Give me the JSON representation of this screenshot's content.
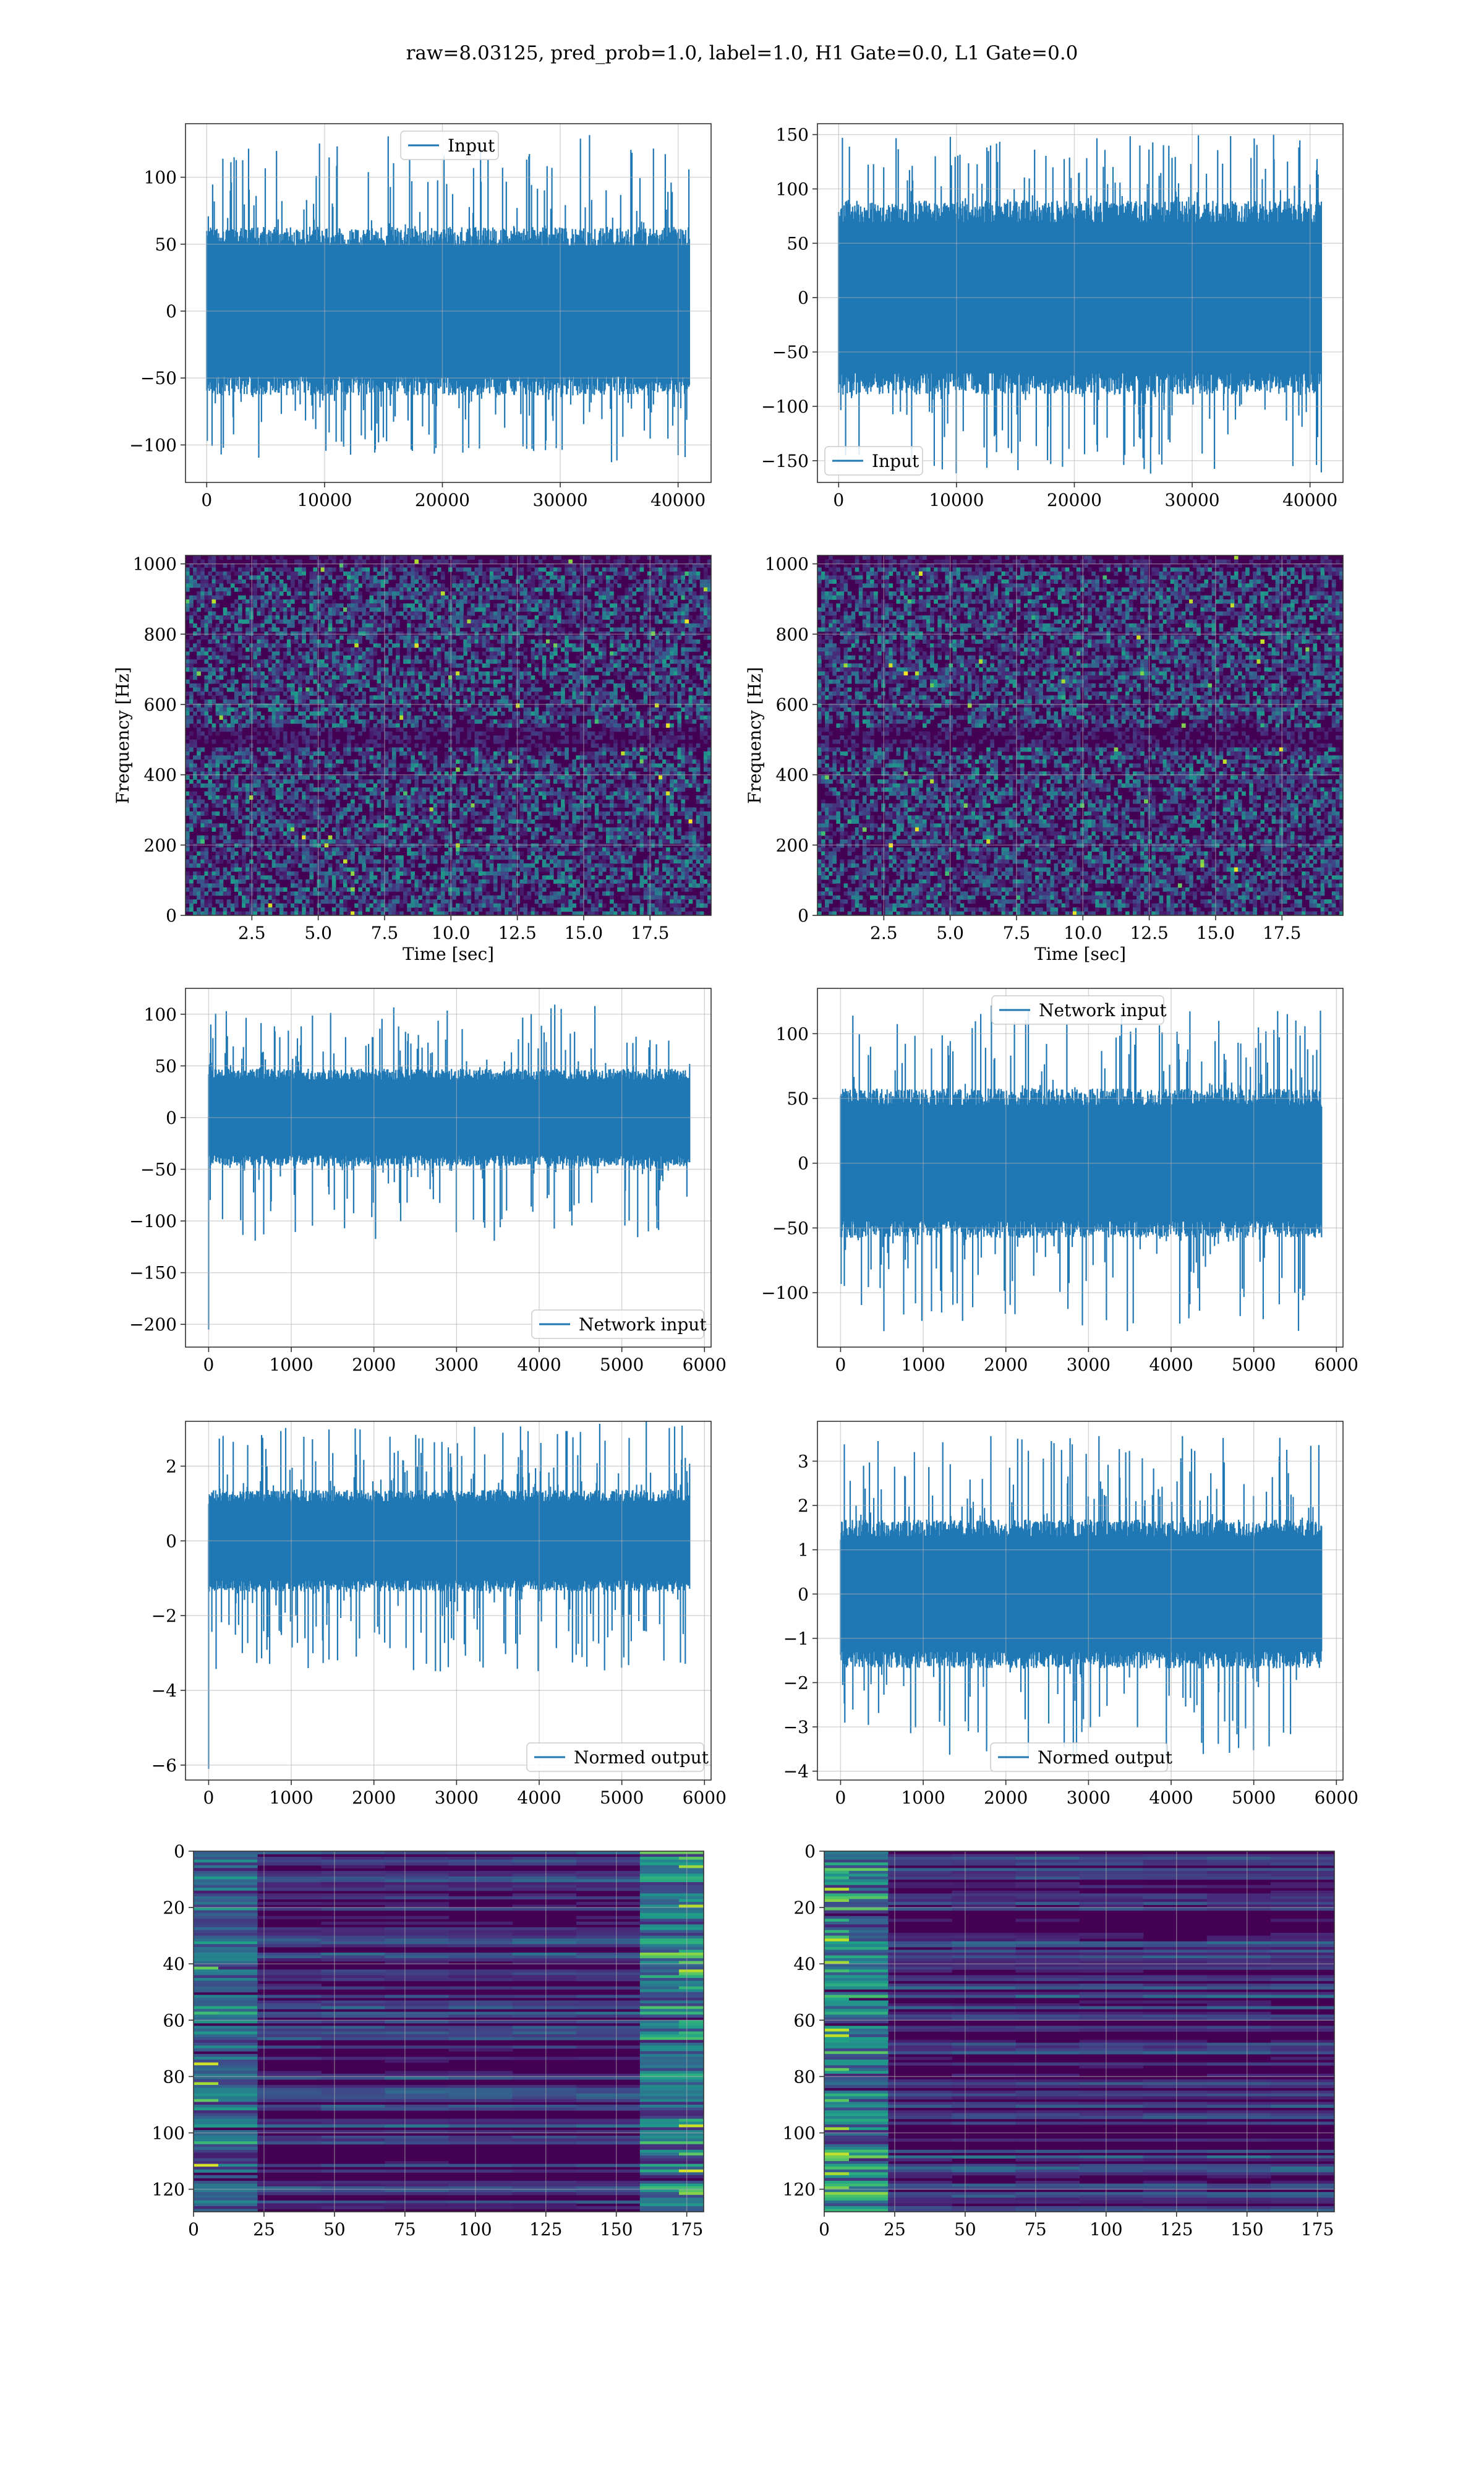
{
  "figure": {
    "suptitle": "raw=8.03125, pred_prob=1.0, label=1.0, H1 Gate=0.0, L1 Gate=0.0"
  },
  "colors": {
    "line": "#1f77b4",
    "grid": "#b0b0b0",
    "axes": "#333333",
    "viridis": [
      "#440154",
      "#482878",
      "#3e4a89",
      "#31688e",
      "#26828e",
      "#1f9e89",
      "#35b779",
      "#6ece58",
      "#b5de2b",
      "#fde725"
    ]
  },
  "chart_data": [
    {
      "id": "h1_input",
      "type": "line",
      "xlim": [
        -1800,
        42800
      ],
      "ylim": [
        -128,
        140
      ],
      "xticks": [
        0,
        10000,
        20000,
        30000,
        40000
      ],
      "yticks": [
        -100,
        -50,
        0,
        50,
        100
      ],
      "xticklabels": [
        "0",
        "10000",
        "20000",
        "30000",
        "40000"
      ],
      "yticklabels": [
        "−100",
        "−50",
        "0",
        "50",
        "100"
      ],
      "grid": true,
      "series": [
        {
          "name": "Input",
          "x_range": [
            0,
            40960
          ],
          "typical_band": [
            -60,
            60
          ],
          "peak": [
            -113,
            133
          ]
        }
      ],
      "legend": "upper center",
      "xlabel": "",
      "ylabel": ""
    },
    {
      "id": "l1_input",
      "type": "line",
      "xlim": [
        -1800,
        42800
      ],
      "ylim": [
        -170,
        160
      ],
      "xticks": [
        0,
        10000,
        20000,
        30000,
        40000
      ],
      "yticks": [
        -150,
        -100,
        -50,
        0,
        50,
        100,
        150
      ],
      "xticklabels": [
        "0",
        "10000",
        "20000",
        "30000",
        "40000"
      ],
      "yticklabels": [
        "−150",
        "−100",
        "−50",
        "0",
        "50",
        "100",
        "150"
      ],
      "grid": true,
      "series": [
        {
          "name": "Input",
          "x_range": [
            0,
            40960
          ],
          "typical_band": [
            -85,
            85
          ],
          "peak": [
            -162,
            150
          ]
        }
      ],
      "legend": "lower left",
      "xlabel": "",
      "ylabel": ""
    },
    {
      "id": "h1_spectrogram",
      "type": "heatmap",
      "xlim": [
        0,
        19.8
      ],
      "ylim": [
        0,
        1024
      ],
      "xticks": [
        2.5,
        5.0,
        7.5,
        10.0,
        12.5,
        15.0,
        17.5
      ],
      "yticks": [
        0,
        200,
        400,
        600,
        800,
        1000
      ],
      "xticklabels": [
        "2.5",
        "5.0",
        "7.5",
        "10.0",
        "12.5",
        "15.0",
        "17.5"
      ],
      "yticklabels": [
        "0",
        "200",
        "400",
        "600",
        "800",
        "1000"
      ],
      "grid": true,
      "xlabel": "Time [sec]",
      "ylabel": "Frequency [Hz]",
      "colormap": "viridis"
    },
    {
      "id": "l1_spectrogram",
      "type": "heatmap",
      "xlim": [
        0,
        19.8
      ],
      "ylim": [
        0,
        1024
      ],
      "xticks": [
        2.5,
        5.0,
        7.5,
        10.0,
        12.5,
        15.0,
        17.5
      ],
      "yticks": [
        0,
        200,
        400,
        600,
        800,
        1000
      ],
      "xticklabels": [
        "2.5",
        "5.0",
        "7.5",
        "10.0",
        "12.5",
        "15.0",
        "17.5"
      ],
      "yticklabels": [
        "0",
        "200",
        "400",
        "600",
        "800",
        "1000"
      ],
      "grid": true,
      "xlabel": "Time [sec]",
      "ylabel": "Frequency [Hz]",
      "colormap": "viridis"
    },
    {
      "id": "h1_network_input",
      "type": "line",
      "xlim": [
        -280,
        6080
      ],
      "ylim": [
        -222,
        125
      ],
      "xticks": [
        0,
        1000,
        2000,
        3000,
        4000,
        5000,
        6000
      ],
      "yticks": [
        -200,
        -150,
        -100,
        -50,
        0,
        50,
        100
      ],
      "xticklabels": [
        "0",
        "1000",
        "2000",
        "3000",
        "4000",
        "5000",
        "6000"
      ],
      "yticklabels": [
        "−200",
        "−150",
        "−100",
        "−50",
        "0",
        "50",
        "100"
      ],
      "grid": true,
      "series": [
        {
          "name": "Network input",
          "x_range": [
            0,
            5820
          ],
          "typical_band": [
            -45,
            45
          ],
          "peak": [
            -120,
            110
          ],
          "start_spike": -205
        }
      ],
      "legend": "lower right",
      "xlabel": "",
      "ylabel": ""
    },
    {
      "id": "l1_network_input",
      "type": "line",
      "xlim": [
        -280,
        6080
      ],
      "ylim": [
        -142,
        135
      ],
      "xticks": [
        0,
        1000,
        2000,
        3000,
        4000,
        5000,
        6000
      ],
      "yticks": [
        -100,
        -50,
        0,
        50,
        100
      ],
      "xticklabels": [
        "0",
        "1000",
        "2000",
        "3000",
        "4000",
        "5000",
        "6000"
      ],
      "yticklabels": [
        "−100",
        "−50",
        "0",
        "50",
        "100"
      ],
      "grid": true,
      "series": [
        {
          "name": "Network input",
          "x_range": [
            0,
            5820
          ],
          "typical_band": [
            -55,
            55
          ],
          "peak": [
            -130,
            122
          ]
        }
      ],
      "legend": "upper center",
      "xlabel": "",
      "ylabel": ""
    },
    {
      "id": "h1_normed_output",
      "type": "line",
      "xlim": [
        -280,
        6080
      ],
      "ylim": [
        -6.4,
        3.2
      ],
      "xticks": [
        0,
        1000,
        2000,
        3000,
        4000,
        5000,
        6000
      ],
      "yticks": [
        -6,
        -4,
        -2,
        0,
        2
      ],
      "xticklabels": [
        "0",
        "1000",
        "2000",
        "3000",
        "4000",
        "5000",
        "6000"
      ],
      "yticklabels": [
        "−6",
        "−4",
        "−2",
        "0",
        "2"
      ],
      "grid": true,
      "series": [
        {
          "name": "Normed output",
          "x_range": [
            0,
            5820
          ],
          "typical_band": [
            -1.3,
            1.3
          ],
          "peak": [
            -3.5,
            3.2
          ],
          "start_spike": -6.1
        }
      ],
      "legend": "lower right",
      "xlabel": "",
      "ylabel": ""
    },
    {
      "id": "l1_normed_output",
      "type": "line",
      "xlim": [
        -280,
        6080
      ],
      "ylim": [
        -4.2,
        3.9
      ],
      "xticks": [
        0,
        1000,
        2000,
        3000,
        4000,
        5000,
        6000
      ],
      "yticks": [
        -4,
        -3,
        -2,
        -1,
        0,
        1,
        2,
        3
      ],
      "xticklabels": [
        "0",
        "1000",
        "2000",
        "3000",
        "4000",
        "5000",
        "6000"
      ],
      "yticklabels": [
        "−4",
        "−3",
        "−2",
        "−1",
        "0",
        "1",
        "2",
        "3"
      ],
      "grid": true,
      "series": [
        {
          "name": "Normed output",
          "x_range": [
            0,
            5820
          ],
          "typical_band": [
            -1.6,
            1.6
          ],
          "peak": [
            -3.8,
            3.6
          ]
        }
      ],
      "legend": "lower center",
      "xlabel": "",
      "ylabel": ""
    },
    {
      "id": "h1_feature_map",
      "type": "heatmap",
      "xlim": [
        0,
        181
      ],
      "ylim": [
        128,
        0
      ],
      "xticks": [
        0,
        25,
        50,
        75,
        100,
        125,
        150,
        175
      ],
      "yticks": [
        0,
        20,
        40,
        60,
        80,
        100,
        120
      ],
      "xticklabels": [
        "0",
        "25",
        "50",
        "75",
        "100",
        "125",
        "150",
        "175"
      ],
      "yticklabels": [
        "0",
        "20",
        "40",
        "60",
        "80",
        "100",
        "120"
      ],
      "grid": true,
      "colormap": "viridis",
      "xlabel": "",
      "ylabel": ""
    },
    {
      "id": "l1_feature_map",
      "type": "heatmap",
      "xlim": [
        0,
        181
      ],
      "ylim": [
        128,
        0
      ],
      "xticks": [
        0,
        25,
        50,
        75,
        100,
        125,
        150,
        175
      ],
      "yticks": [
        0,
        20,
        40,
        60,
        80,
        100,
        120
      ],
      "xticklabels": [
        "0",
        "25",
        "50",
        "75",
        "100",
        "125",
        "150",
        "175"
      ],
      "yticklabels": [
        "0",
        "20",
        "40",
        "60",
        "80",
        "100",
        "120"
      ],
      "grid": true,
      "colormap": "viridis",
      "xlabel": "",
      "ylabel": ""
    }
  ]
}
